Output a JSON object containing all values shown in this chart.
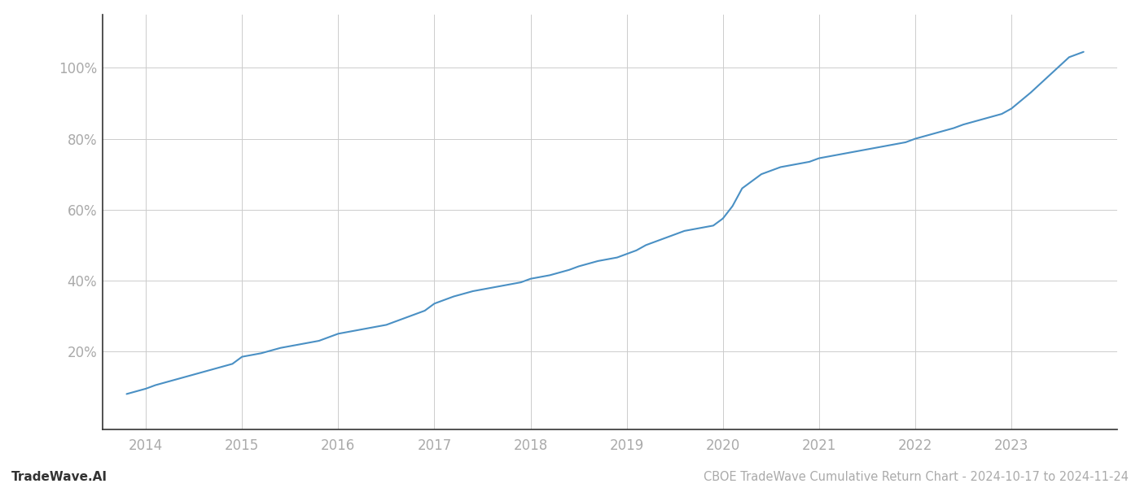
{
  "title": "CBOE TradeWave Cumulative Return Chart - 2024-10-17 to 2024-11-24",
  "watermark": "TradeWave.AI",
  "line_color": "#4a90c4",
  "background_color": "#ffffff",
  "grid_color": "#cccccc",
  "x_years": [
    2014,
    2015,
    2016,
    2017,
    2018,
    2019,
    2020,
    2021,
    2022,
    2023
  ],
  "x_data": [
    2013.8,
    2014.0,
    2014.1,
    2014.3,
    2014.5,
    2014.7,
    2014.9,
    2015.0,
    2015.2,
    2015.4,
    2015.6,
    2015.8,
    2015.9,
    2016.0,
    2016.2,
    2016.4,
    2016.5,
    2016.7,
    2016.9,
    2017.0,
    2017.2,
    2017.4,
    2017.6,
    2017.8,
    2017.9,
    2018.0,
    2018.2,
    2018.4,
    2018.5,
    2018.7,
    2018.9,
    2019.0,
    2019.1,
    2019.2,
    2019.4,
    2019.6,
    2019.8,
    2019.9,
    2020.0,
    2020.1,
    2020.2,
    2020.4,
    2020.6,
    2020.8,
    2020.9,
    2021.0,
    2021.2,
    2021.4,
    2021.6,
    2021.8,
    2021.9,
    2022.0,
    2022.2,
    2022.4,
    2022.5,
    2022.7,
    2022.9,
    2023.0,
    2023.2,
    2023.4,
    2023.6,
    2023.75
  ],
  "y_data": [
    8.0,
    9.5,
    10.5,
    12.0,
    13.5,
    15.0,
    16.5,
    18.5,
    19.5,
    21.0,
    22.0,
    23.0,
    24.0,
    25.0,
    26.0,
    27.0,
    27.5,
    29.5,
    31.5,
    33.5,
    35.5,
    37.0,
    38.0,
    39.0,
    39.5,
    40.5,
    41.5,
    43.0,
    44.0,
    45.5,
    46.5,
    47.5,
    48.5,
    50.0,
    52.0,
    54.0,
    55.0,
    55.5,
    57.5,
    61.0,
    66.0,
    70.0,
    72.0,
    73.0,
    73.5,
    74.5,
    75.5,
    76.5,
    77.5,
    78.5,
    79.0,
    80.0,
    81.5,
    83.0,
    84.0,
    85.5,
    87.0,
    88.5,
    93.0,
    98.0,
    103.0,
    104.5
  ],
  "ylim": [
    -2,
    115
  ],
  "xlim": [
    2013.55,
    2024.1
  ],
  "yticks": [
    20,
    40,
    60,
    80,
    100
  ],
  "line_width": 1.5,
  "title_fontsize": 10.5,
  "watermark_fontsize": 11,
  "tick_fontsize": 12,
  "tick_color": "#aaaaaa",
  "axis_color": "#333333",
  "spine_color": "#333333"
}
